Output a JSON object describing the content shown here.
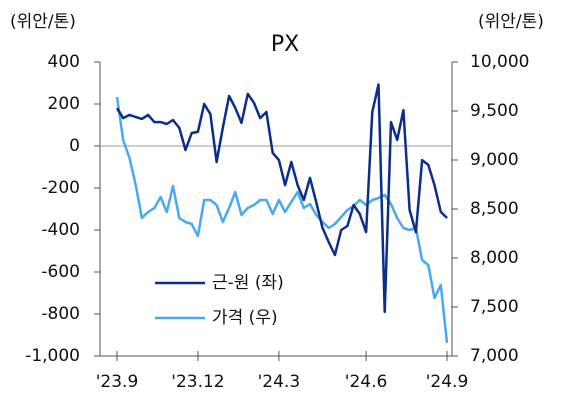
{
  "chart_data": {
    "type": "line",
    "title": "PX",
    "y_label": "(위안/톤)",
    "y2_label": "(위안/톤)",
    "categories": [
      "'23.9",
      null,
      null,
      null,
      null,
      null,
      null,
      null,
      null,
      null,
      null,
      null,
      null,
      "'23.12",
      null,
      null,
      null,
      null,
      null,
      null,
      null,
      null,
      null,
      null,
      null,
      null,
      "'24.3",
      null,
      null,
      null,
      null,
      null,
      null,
      null,
      null,
      null,
      null,
      null,
      null,
      null,
      "'24.6",
      null,
      null,
      null,
      null,
      null,
      null,
      null,
      null,
      null,
      null,
      null,
      null,
      "'24.9"
    ],
    "series": [
      {
        "name": "근-원 (좌)",
        "color": "#0b2e8a",
        "axis": "y",
        "values": [
          180,
          133,
          148,
          138,
          129,
          148,
          114,
          114,
          105,
          124,
          86,
          -19,
          62,
          67,
          200,
          152,
          -76,
          86,
          238,
          181,
          110,
          248,
          205,
          133,
          162,
          -33,
          -67,
          -186,
          -76,
          -186,
          -257,
          -152,
          -267,
          -390,
          -457,
          -519,
          -400,
          -381,
          -281,
          -324,
          -410,
          162,
          293,
          -790,
          114,
          29,
          171,
          -305,
          -410,
          -67,
          -90,
          -186,
          -314,
          -343
        ]
      },
      {
        "name": "가격 (우)",
        "color": "#4aa8ef",
        "axis": "y2",
        "values": [
          9643,
          9204,
          9020,
          8745,
          8408,
          8469,
          8510,
          8622,
          8469,
          8735,
          8408,
          8367,
          8347,
          8224,
          8592,
          8592,
          8541,
          8367,
          8510,
          8673,
          8439,
          8510,
          8541,
          8592,
          8592,
          8449,
          8592,
          8469,
          8571,
          8673,
          8510,
          8551,
          8439,
          8367,
          8306,
          8347,
          8418,
          8490,
          8531,
          8592,
          8541,
          8592,
          8612,
          8643,
          8551,
          8408,
          8306,
          8286,
          8306,
          7980,
          7929,
          7592,
          7724,
          7133
        ]
      }
    ],
    "ylim": [
      -1000,
      400
    ],
    "yticks": [
      400,
      200,
      0,
      -200,
      -400,
      -600,
      -800,
      {
        "value": -1000,
        "label": "-1,000"
      }
    ],
    "y2lim": [
      7000,
      10000
    ],
    "y2ticks": [
      {
        "value": 10000,
        "label": "10,000"
      },
      {
        "value": 9500,
        "label": "9,500"
      },
      {
        "value": 9000,
        "label": "9,000"
      },
      {
        "value": 8500,
        "label": "8,500"
      },
      {
        "value": 8000,
        "label": "8,000"
      },
      {
        "value": 7500,
        "label": "7,500"
      },
      {
        "value": 7000,
        "label": "7,000"
      }
    ]
  }
}
